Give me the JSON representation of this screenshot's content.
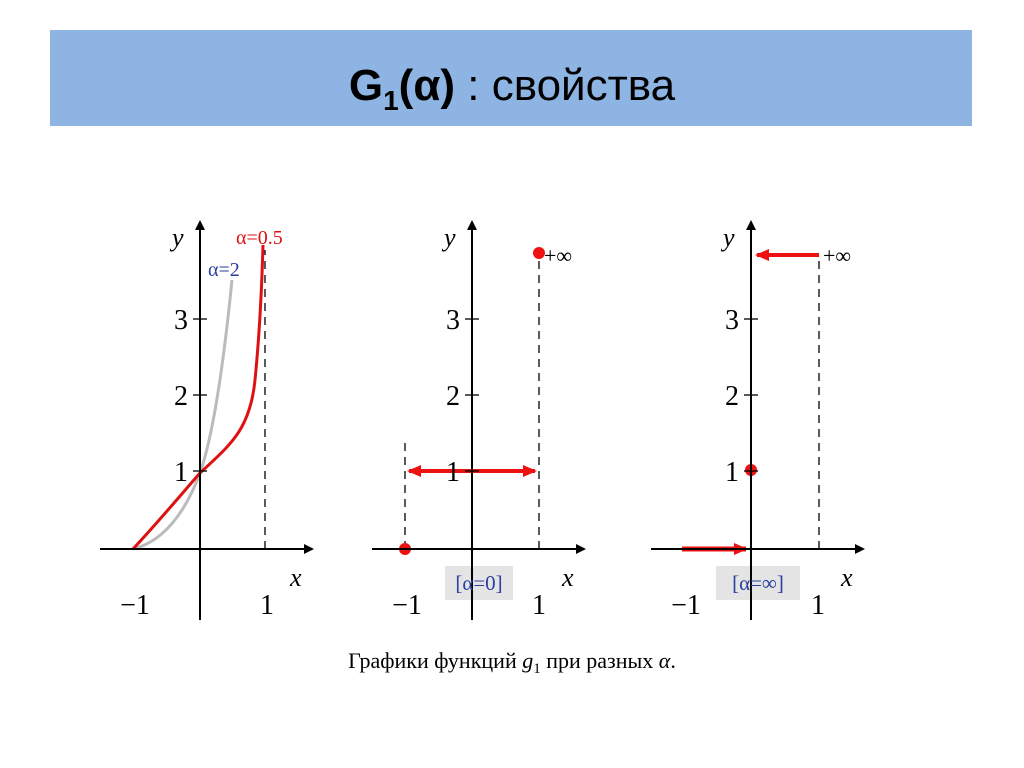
{
  "title": {
    "main": "G",
    "sub": "1",
    "paren": "(α)",
    "rest": " : свойства"
  },
  "panels": [
    {
      "y_label": "y",
      "x_label": "x",
      "y_ticks": [
        "1",
        "2",
        "3"
      ],
      "x_ticks": [
        "−1",
        "1"
      ],
      "curve_labels": [
        "α=0.5",
        "α=2"
      ]
    },
    {
      "y_label": "y",
      "x_label": "x",
      "y_ticks": [
        "1",
        "2",
        "3"
      ],
      "x_ticks": [
        "−1",
        "1"
      ],
      "infinity": "+∞",
      "case": "[α=0]"
    },
    {
      "y_label": "y",
      "x_label": "x",
      "y_ticks": [
        "1",
        "2",
        "3"
      ],
      "x_ticks": [
        "−1",
        "1"
      ],
      "infinity": "+∞",
      "case": "[α=∞]"
    }
  ],
  "caption": {
    "text": "Графики функций ",
    "fn": "g",
    "sub": "1",
    "rest": " при разных ",
    "alpha": "α",
    "end": "."
  }
}
